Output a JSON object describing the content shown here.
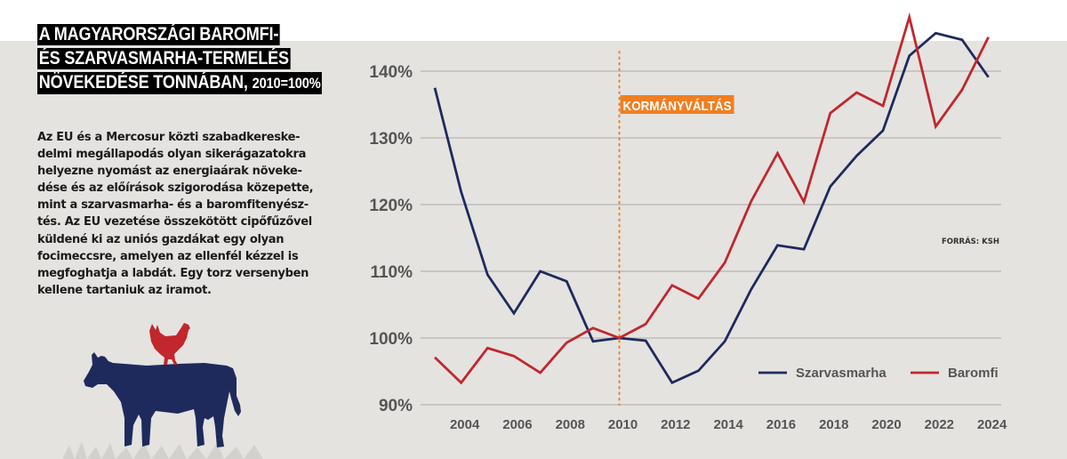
{
  "title": {
    "lines": [
      "A MAGYARORSZÁGI BAROMFI-",
      "ÉS SZARVASMARHA-TERMELÉS",
      "NÖVEKEDÉSE TONNÁBAN,"
    ],
    "suffix": "2010=100%"
  },
  "body": {
    "lines": [
      "Az EU és a Mercosur közti szabadkereske-",
      "delmi megállapodás olyan sikerágazatokra",
      "helyezne nyomást az energiaárak növeke-",
      "dése és az előírások szigorodása közepette,",
      "mint a szarvasmarha- és a baromfitenyész-",
      "tés. Az EU vezetése összekötött cipőfűzővel",
      "küldené ki az uniós gazdákat egy olyan",
      "focimeccsre, amelyen az ellenfél kézzel is",
      "megfoghatja a labdát. Egy torz versenyben",
      "kellene tartaniuk az iramot."
    ]
  },
  "illustration": {
    "icons": [
      "cow-icon",
      "hen-icon"
    ],
    "colors": {
      "cow": "#1f2a5c",
      "hen": "#c1272d"
    }
  },
  "chart_data": {
    "type": "line",
    "title": "A MAGYARORSZÁGI BAROMFI- ÉS SZARVASMARHA-TERMELÉS NÖVEKEDÉSE TONNÁBAN, 2010=100%",
    "xlabel": "",
    "ylabel": "",
    "x": [
      2003,
      2004,
      2005,
      2006,
      2007,
      2008,
      2009,
      2010,
      2011,
      2012,
      2013,
      2014,
      2015,
      2016,
      2017,
      2018,
      2019,
      2020,
      2021,
      2022,
      2023,
      2024
    ],
    "xticks": [
      "2004",
      "2006",
      "2008",
      "2010",
      "2012",
      "2014",
      "2016",
      "2018",
      "2020",
      "2022",
      "2024"
    ],
    "xtick_values": [
      2004,
      2006,
      2008,
      2010,
      2012,
      2014,
      2016,
      2018,
      2020,
      2022,
      2024
    ],
    "yticks": [
      "90%",
      "100%",
      "110%",
      "120%",
      "130%",
      "140%"
    ],
    "ytick_values": [
      90,
      100,
      110,
      120,
      130,
      140
    ],
    "ylim": [
      90,
      140
    ],
    "grid": true,
    "series": [
      {
        "name": "Szarvasmarha",
        "color": "#1f2a5c",
        "values": [
          137.5,
          121.9,
          109.5,
          103.7,
          110.0,
          108.5,
          99.5,
          100.0,
          99.6,
          93.3,
          95.1,
          99.5,
          107.3,
          113.9,
          113.3,
          122.7,
          127.3,
          131.1,
          142.3,
          145.7,
          144.7,
          139.1
        ]
      },
      {
        "name": "Baromfi",
        "color": "#c1272d",
        "values": [
          97.1,
          93.3,
          98.5,
          97.3,
          94.8,
          99.3,
          101.5,
          100.0,
          102.1,
          107.9,
          105.9,
          111.3,
          120.5,
          127.7,
          120.4,
          133.7,
          136.8,
          134.8,
          148.1,
          131.7,
          137.2,
          145.1
        ]
      }
    ],
    "annotation": {
      "x": 2010,
      "label": "KORMÁNYVÁLTÁS",
      "color": "#f07f22"
    },
    "legend": {
      "position": "bottom-right",
      "entries": [
        "Szarvasmarha",
        "Baromfi"
      ]
    },
    "source": "FORRÁS: KSH"
  }
}
